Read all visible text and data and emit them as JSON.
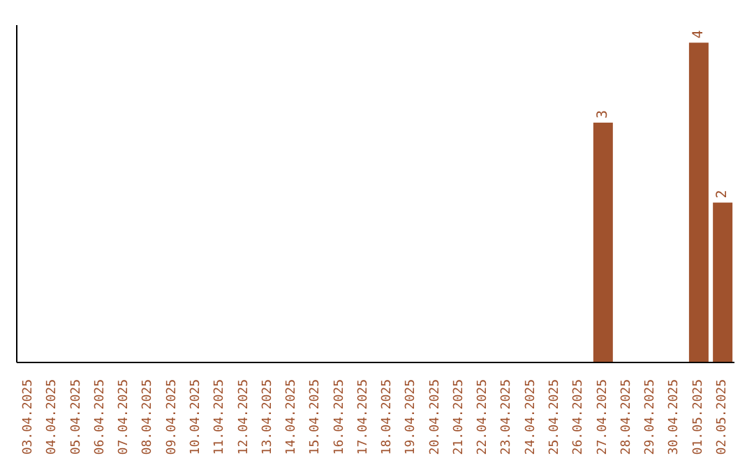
{
  "chart_data": {
    "type": "bar",
    "categories": [
      "03.04.2025",
      "04.04.2025",
      "05.04.2025",
      "06.04.2025",
      "07.04.2025",
      "08.04.2025",
      "09.04.2025",
      "10.04.2025",
      "11.04.2025",
      "12.04.2025",
      "13.04.2025",
      "14.04.2025",
      "15.04.2025",
      "16.04.2025",
      "17.04.2025",
      "18.04.2025",
      "19.04.2025",
      "20.04.2025",
      "21.04.2025",
      "22.04.2025",
      "23.04.2025",
      "24.04.2025",
      "25.04.2025",
      "26.04.2025",
      "27.04.2025",
      "28.04.2025",
      "29.04.2025",
      "30.04.2025",
      "01.05.2025",
      "02.05.2025"
    ],
    "series": [
      {
        "color": "#a0522d",
        "values": [
          null,
          null,
          null,
          null,
          null,
          null,
          null,
          null,
          null,
          null,
          null,
          null,
          null,
          null,
          null,
          null,
          null,
          null,
          null,
          null,
          null,
          null,
          null,
          null,
          3,
          null,
          null,
          null,
          4,
          2
        ]
      }
    ],
    "data_labels": true,
    "tick_labels": "x",
    "grid": false,
    "legend": false
  }
}
